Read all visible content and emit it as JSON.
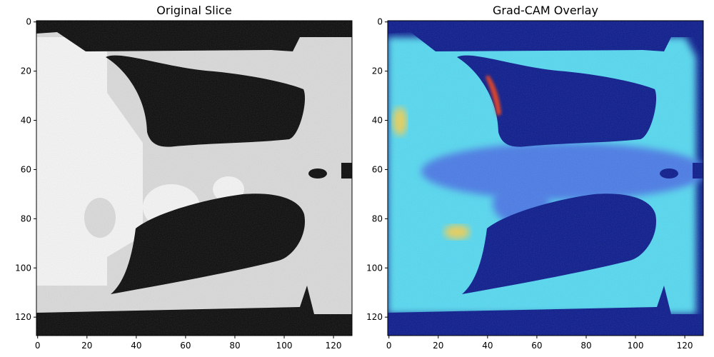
{
  "panels": [
    {
      "title": "Original Slice",
      "x_ticks": [
        "0",
        "20",
        "40",
        "60",
        "80",
        "100",
        "120"
      ],
      "y_ticks": [
        "0",
        "20",
        "40",
        "60",
        "80",
        "100",
        "120"
      ],
      "colormap": "gray"
    },
    {
      "title": "Grad-CAM Overlay",
      "x_ticks": [
        "0",
        "20",
        "40",
        "60",
        "80",
        "100",
        "120"
      ],
      "y_ticks": [
        "0",
        "20",
        "40",
        "60",
        "80",
        "100",
        "120"
      ],
      "colormap": "jet-overlay"
    }
  ],
  "image_extent": [
    0,
    128
  ],
  "colors": {
    "ct_black": "#0a0a0a",
    "ct_soft_tissue": "#d9d9d9",
    "ct_bright": "#f4f4f4",
    "overlay_base": "#0a1a8c",
    "overlay_cyan": "#55d8f0",
    "overlay_blue": "#4a7ae6",
    "overlay_hot": "#e03a1a",
    "overlay_yellow": "#e8d05a"
  }
}
